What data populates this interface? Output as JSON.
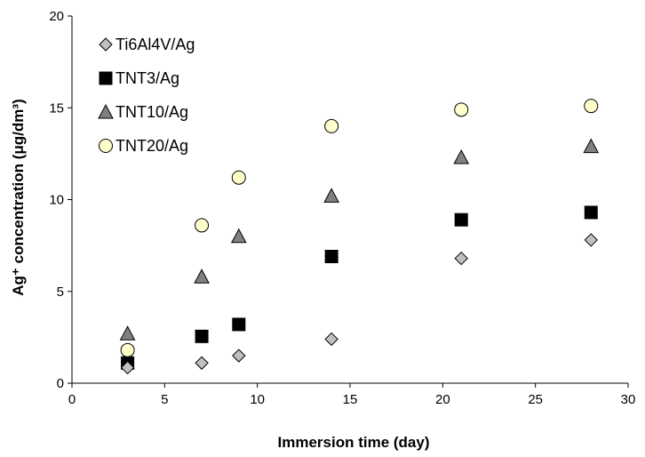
{
  "chart_data": {
    "type": "scatter",
    "xlabel": "Immersion time (day)",
    "ylabel": "Ag⁺ concentration (μg/dm³)",
    "xlim": [
      0,
      30
    ],
    "ylim": [
      0,
      20
    ],
    "xticks": [
      0,
      5,
      10,
      15,
      20,
      25,
      30
    ],
    "yticks": [
      0,
      5,
      10,
      15,
      20
    ],
    "grid": false,
    "legend_position": "top-left",
    "series": [
      {
        "name": "Ti6Al4V/Ag",
        "marker": "diamond",
        "fill": "#c0c0c0",
        "points": [
          [
            3,
            0.85
          ],
          [
            7,
            1.1
          ],
          [
            9,
            1.5
          ],
          [
            14,
            2.4
          ],
          [
            21,
            6.8
          ],
          [
            28,
            7.8
          ]
        ]
      },
      {
        "name": "TNT3/Ag",
        "marker": "square",
        "fill": "#000000",
        "points": [
          [
            3,
            1.1
          ],
          [
            7,
            2.55
          ],
          [
            9,
            3.2
          ],
          [
            14,
            6.9
          ],
          [
            21,
            8.9
          ],
          [
            28,
            9.3
          ]
        ]
      },
      {
        "name": "TNT10/Ag",
        "marker": "triangle",
        "fill": "#808080",
        "points": [
          [
            3,
            2.7
          ],
          [
            7,
            5.8
          ],
          [
            9,
            8.0
          ],
          [
            14,
            10.2
          ],
          [
            21,
            12.3
          ],
          [
            28,
            12.9
          ]
        ]
      },
      {
        "name": "TNT20/Ag",
        "marker": "circle",
        "fill": "#ffffcc",
        "points": [
          [
            3,
            1.8
          ],
          [
            7,
            8.6
          ],
          [
            9,
            11.2
          ],
          [
            14,
            14.0
          ],
          [
            21,
            14.9
          ],
          [
            28,
            15.1
          ]
        ]
      }
    ]
  }
}
